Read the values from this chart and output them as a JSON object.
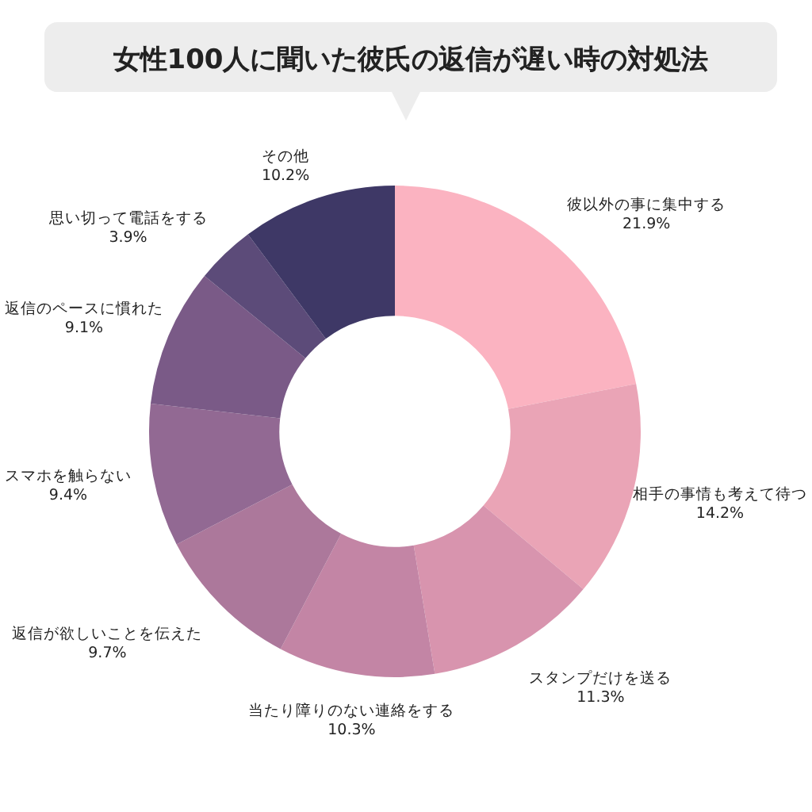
{
  "chart_data": {
    "type": "donut",
    "title": "女性100人に聞いた彼氏の返信が遅い時の対処法",
    "categories": [
      "彼以外の事に集中する",
      "相手の事情も考えて待つ",
      "スタンプだけを送る",
      "当たり障りのない連絡をする",
      "返信が欲しいことを伝えた",
      "スマホを触らない",
      "返信のペースに慣れた",
      "思い切って電話をする",
      "その他"
    ],
    "values": [
      21.9,
      14.2,
      11.3,
      10.3,
      9.7,
      9.4,
      9.1,
      3.9,
      10.2
    ],
    "colors": [
      "#fbb3c1",
      "#eaa4b6",
      "#d894ae",
      "#c385a5",
      "#ac789b",
      "#926993",
      "#7a5a87",
      "#5c4b79",
      "#3e3866"
    ],
    "value_labels": [
      "21.9%",
      "14.2%",
      "11.3%",
      "10.3%",
      "9.7%",
      "9.4%",
      "9.1%",
      "3.9%",
      "10.2%"
    ]
  }
}
